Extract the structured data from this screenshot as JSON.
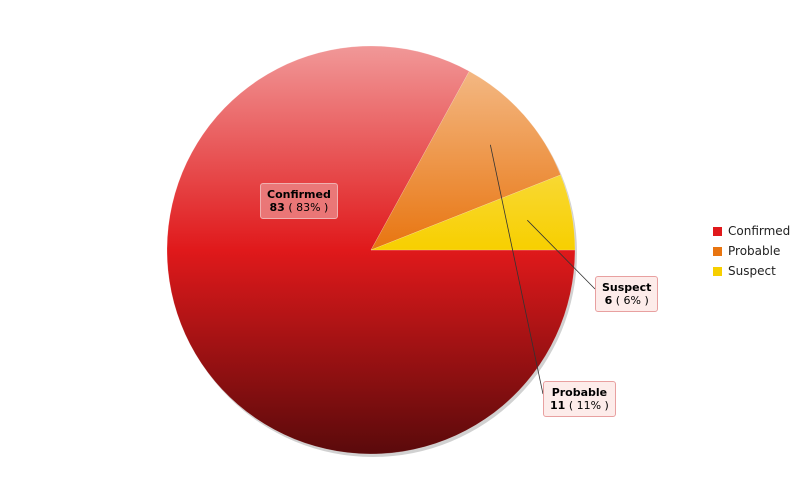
{
  "chart_data": {
    "type": "pie",
    "title": "",
    "slices": [
      {
        "label": "Confirmed",
        "value": 83,
        "percent_text": "( 83% )",
        "color": "#e0191b"
      },
      {
        "label": "Probable",
        "value": 11,
        "percent_text": "( 11% )",
        "color": "#e87510"
      },
      {
        "label": "Suspect",
        "value": 6,
        "percent_text": "( 6% )",
        "color": "#f7cf00"
      }
    ],
    "legend": {
      "position": "right",
      "items": [
        {
          "label": "Confirmed",
          "color": "#e0191b"
        },
        {
          "label": "Probable",
          "color": "#e87510"
        },
        {
          "label": "Suspect",
          "color": "#f7cf00"
        }
      ]
    },
    "start_angle_deg": 0,
    "direction": "clockwise"
  }
}
